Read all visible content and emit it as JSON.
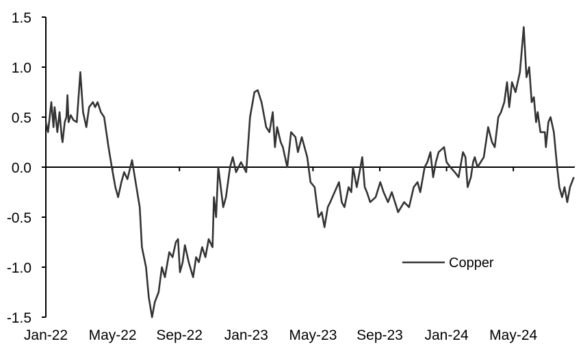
{
  "chart_data": {
    "type": "line",
    "title": "",
    "xlabel": "",
    "ylabel": "",
    "ylim": [
      -1.5,
      1.5
    ],
    "yticks": [
      "1.5",
      "1.0",
      "0.5",
      "0.0",
      "-0.5",
      "-1.0",
      "-1.5"
    ],
    "xticks": [
      "Jan-22",
      "May-22",
      "Sep-22",
      "Jan-23",
      "May-23",
      "Sep-23",
      "Jan-24",
      "May-24"
    ],
    "xlim": [
      "2022-01-01",
      "2024-09-01"
    ],
    "grid": false,
    "legend_position": "bottom-right",
    "line_color": "#333333",
    "series": [
      {
        "name": "Copper",
        "points": [
          [
            "2022-01-01",
            0.45
          ],
          [
            "2022-01-05",
            0.35
          ],
          [
            "2022-01-11",
            0.65
          ],
          [
            "2022-01-15",
            0.4
          ],
          [
            "2022-01-17",
            0.6
          ],
          [
            "2022-01-22",
            0.35
          ],
          [
            "2022-01-26",
            0.55
          ],
          [
            "2022-01-30",
            0.3
          ],
          [
            "2022-02-01",
            0.25
          ],
          [
            "2022-02-05",
            0.45
          ],
          [
            "2022-02-08",
            0.5
          ],
          [
            "2022-02-10",
            0.72
          ],
          [
            "2022-02-12",
            0.45
          ],
          [
            "2022-02-16",
            0.52
          ],
          [
            "2022-02-21",
            0.47
          ],
          [
            "2022-02-27",
            0.45
          ],
          [
            "2022-03-03",
            0.95
          ],
          [
            "2022-03-08",
            0.55
          ],
          [
            "2022-03-14",
            0.4
          ],
          [
            "2022-03-19",
            0.6
          ],
          [
            "2022-03-26",
            0.65
          ],
          [
            "2022-03-30",
            0.6
          ],
          [
            "2022-04-04",
            0.65
          ],
          [
            "2022-04-10",
            0.55
          ],
          [
            "2022-04-16",
            0.5
          ],
          [
            "2022-04-24",
            0.2
          ],
          [
            "2022-04-30",
            0.0
          ],
          [
            "2022-05-06",
            -0.2
          ],
          [
            "2022-05-11",
            -0.3
          ],
          [
            "2022-05-17",
            -0.15
          ],
          [
            "2022-05-22",
            -0.05
          ],
          [
            "2022-05-28",
            -0.12
          ],
          [
            "2022-06-06",
            0.07
          ],
          [
            "2022-06-14",
            -0.2
          ],
          [
            "2022-06-20",
            -0.4
          ],
          [
            "2022-06-24",
            -0.8
          ],
          [
            "2022-07-01",
            -1.0
          ],
          [
            "2022-07-06",
            -1.3
          ],
          [
            "2022-07-12",
            -1.5
          ],
          [
            "2022-07-17",
            -1.35
          ],
          [
            "2022-07-24",
            -1.25
          ],
          [
            "2022-07-30",
            -1.0
          ],
          [
            "2022-08-05",
            -1.1
          ],
          [
            "2022-08-13",
            -0.85
          ],
          [
            "2022-08-19",
            -0.9
          ],
          [
            "2022-08-25",
            -0.75
          ],
          [
            "2022-08-29",
            -0.72
          ],
          [
            "2022-09-02",
            -1.05
          ],
          [
            "2022-09-07",
            -0.95
          ],
          [
            "2022-09-11",
            -0.78
          ],
          [
            "2022-09-18",
            -0.95
          ],
          [
            "2022-09-26",
            -1.1
          ],
          [
            "2022-10-01",
            -0.9
          ],
          [
            "2022-10-06",
            -0.95
          ],
          [
            "2022-10-12",
            -0.8
          ],
          [
            "2022-10-18",
            -0.9
          ],
          [
            "2022-10-24",
            -0.72
          ],
          [
            "2022-10-31",
            -0.8
          ],
          [
            "2022-11-03",
            -0.3
          ],
          [
            "2022-11-07",
            -0.5
          ],
          [
            "2022-11-11",
            0.0
          ],
          [
            "2022-11-20",
            -0.4
          ],
          [
            "2022-11-25",
            -0.3
          ],
          [
            "2022-12-02",
            0.0
          ],
          [
            "2022-12-07",
            0.1
          ],
          [
            "2022-12-13",
            -0.05
          ],
          [
            "2022-12-22",
            0.05
          ],
          [
            "2023-01-01",
            -0.05
          ],
          [
            "2023-01-08",
            0.5
          ],
          [
            "2023-01-16",
            0.75
          ],
          [
            "2023-01-22",
            0.77
          ],
          [
            "2023-01-29",
            0.65
          ],
          [
            "2023-02-07",
            0.4
          ],
          [
            "2023-02-13",
            0.35
          ],
          [
            "2023-02-19",
            0.55
          ],
          [
            "2023-02-23",
            0.2
          ],
          [
            "2023-02-27",
            0.4
          ],
          [
            "2023-03-03",
            0.25
          ],
          [
            "2023-03-07",
            0.2
          ],
          [
            "2023-03-15",
            0.0
          ],
          [
            "2023-03-22",
            0.35
          ],
          [
            "2023-03-30",
            0.3
          ],
          [
            "2023-04-04",
            0.15
          ],
          [
            "2023-04-11",
            0.3
          ],
          [
            "2023-04-21",
            0.1
          ],
          [
            "2023-04-27",
            -0.15
          ],
          [
            "2023-05-04",
            -0.2
          ],
          [
            "2023-05-11",
            -0.5
          ],
          [
            "2023-05-17",
            -0.45
          ],
          [
            "2023-05-22",
            -0.6
          ],
          [
            "2023-05-28",
            -0.4
          ],
          [
            "2023-06-02",
            -0.35
          ],
          [
            "2023-06-10",
            -0.25
          ],
          [
            "2023-06-18",
            -0.15
          ],
          [
            "2023-06-23",
            -0.35
          ],
          [
            "2023-06-28",
            -0.4
          ],
          [
            "2023-07-05",
            -0.2
          ],
          [
            "2023-07-10",
            -0.25
          ],
          [
            "2023-07-13",
            0.0
          ],
          [
            "2023-07-20",
            -0.2
          ],
          [
            "2023-07-30",
            0.1
          ],
          [
            "2023-08-04",
            -0.2
          ],
          [
            "2023-08-08",
            -0.25
          ],
          [
            "2023-08-14",
            -0.35
          ],
          [
            "2023-08-24",
            -0.3
          ],
          [
            "2023-09-02",
            -0.15
          ],
          [
            "2023-09-08",
            -0.25
          ],
          [
            "2023-09-16",
            -0.35
          ],
          [
            "2023-09-23",
            -0.25
          ],
          [
            "2023-10-04",
            -0.45
          ],
          [
            "2023-10-15",
            -0.35
          ],
          [
            "2023-10-24",
            -0.4
          ],
          [
            "2023-11-02",
            -0.2
          ],
          [
            "2023-11-09",
            -0.15
          ],
          [
            "2023-11-14",
            -0.25
          ],
          [
            "2023-11-22",
            0.0
          ],
          [
            "2023-11-27",
            0.05
          ],
          [
            "2023-12-02",
            0.15
          ],
          [
            "2023-12-07",
            -0.1
          ],
          [
            "2023-12-12",
            0.05
          ],
          [
            "2023-12-17",
            0.15
          ],
          [
            "2023-12-27",
            0.2
          ],
          [
            "2024-01-01",
            0.05
          ],
          [
            "2024-01-08",
            0.0
          ],
          [
            "2024-01-16",
            -0.05
          ],
          [
            "2024-01-23",
            -0.1
          ],
          [
            "2024-01-31",
            0.15
          ],
          [
            "2024-02-05",
            0.1
          ],
          [
            "2024-02-09",
            -0.2
          ],
          [
            "2024-02-15",
            -0.1
          ],
          [
            "2024-02-19",
            0.05
          ],
          [
            "2024-02-22",
            0.1
          ],
          [
            "2024-02-27",
            0.0
          ],
          [
            "2024-03-08",
            0.1
          ],
          [
            "2024-03-16",
            0.4
          ],
          [
            "2024-03-23",
            0.25
          ],
          [
            "2024-03-28",
            0.2
          ],
          [
            "2024-04-04",
            0.5
          ],
          [
            "2024-04-09",
            0.55
          ],
          [
            "2024-04-15",
            0.65
          ],
          [
            "2024-04-20",
            0.85
          ],
          [
            "2024-04-24",
            0.6
          ],
          [
            "2024-04-29",
            0.85
          ],
          [
            "2024-05-05",
            0.75
          ],
          [
            "2024-05-13",
            0.95
          ],
          [
            "2024-05-20",
            1.4
          ],
          [
            "2024-05-25",
            0.9
          ],
          [
            "2024-05-30",
            1.0
          ],
          [
            "2024-06-04",
            0.65
          ],
          [
            "2024-06-08",
            0.7
          ],
          [
            "2024-06-12",
            0.45
          ],
          [
            "2024-06-15",
            0.55
          ],
          [
            "2024-06-20",
            0.35
          ],
          [
            "2024-06-28",
            0.35
          ],
          [
            "2024-06-30",
            0.2
          ],
          [
            "2024-07-04",
            0.45
          ],
          [
            "2024-07-08",
            0.5
          ],
          [
            "2024-07-14",
            0.35
          ],
          [
            "2024-07-20",
            0.0
          ],
          [
            "2024-07-24",
            -0.2
          ],
          [
            "2024-07-29",
            -0.3
          ],
          [
            "2024-08-03",
            -0.2
          ],
          [
            "2024-08-08",
            -0.35
          ],
          [
            "2024-08-13",
            -0.2
          ],
          [
            "2024-08-20",
            -0.1
          ]
        ]
      }
    ]
  }
}
